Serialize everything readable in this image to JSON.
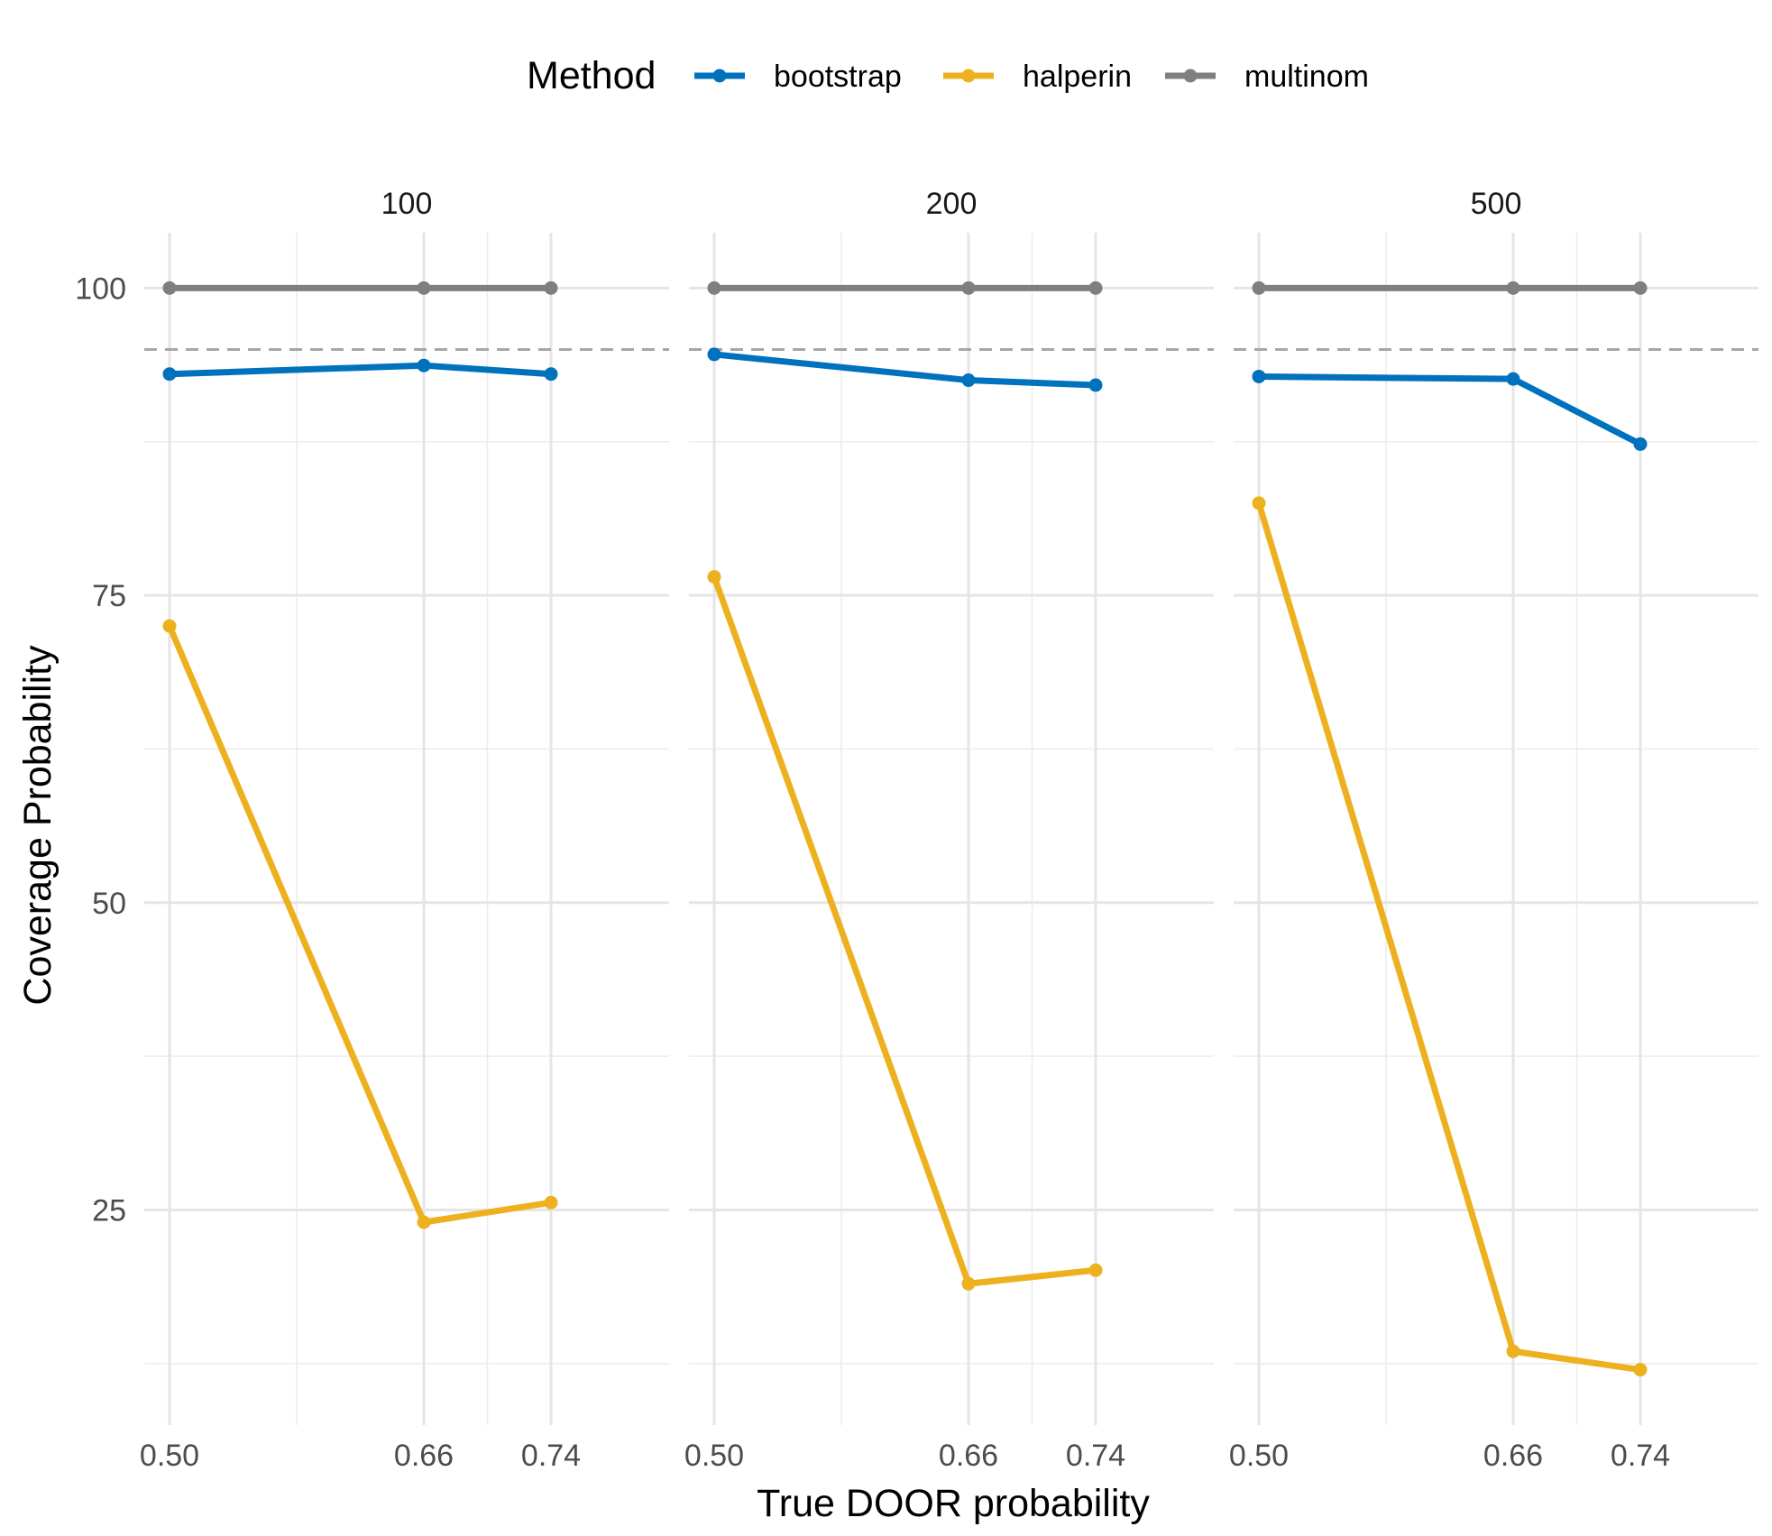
{
  "legend": {
    "title": "Method",
    "position": "top"
  },
  "chart_data": {
    "type": "line",
    "xlabel": "True DOOR probability",
    "ylabel": "Coverage Probability",
    "x": [
      0.5,
      0.66,
      0.74
    ],
    "x_tick_labels": [
      "0.50",
      "0.66",
      "0.74"
    ],
    "xlim": [
      0.5,
      0.74
    ],
    "ylim": [
      12,
      100
    ],
    "y_ticks": [
      25,
      50,
      75,
      100
    ],
    "y_tick_labels": [
      "25",
      "50",
      "75",
      "100"
    ],
    "grid": true,
    "reference_line": {
      "y": 95,
      "style": "dashed"
    },
    "series_colors": {
      "bootstrap": "#0072BD",
      "halperin": "#EDB120",
      "multinom": "#7F7F7F"
    },
    "panels": [
      {
        "label": "100",
        "series": [
          {
            "name": "bootstrap",
            "values": [
              93.0,
              93.7,
              93.0
            ]
          },
          {
            "name": "halperin",
            "values": [
              72.5,
              24.0,
              25.6
            ]
          },
          {
            "name": "multinom",
            "values": [
              100,
              100,
              100
            ]
          }
        ]
      },
      {
        "label": "200",
        "series": [
          {
            "name": "bootstrap",
            "values": [
              94.6,
              92.5,
              92.1
            ]
          },
          {
            "name": "halperin",
            "values": [
              76.5,
              19.0,
              20.1
            ]
          },
          {
            "name": "multinom",
            "values": [
              100,
              100,
              100
            ]
          }
        ]
      },
      {
        "label": "500",
        "series": [
          {
            "name": "bootstrap",
            "values": [
              92.8,
              92.6,
              87.3
            ]
          },
          {
            "name": "halperin",
            "values": [
              82.5,
              13.5,
              12.0
            ]
          },
          {
            "name": "multinom",
            "values": [
              100,
              100,
              100
            ]
          }
        ]
      }
    ]
  }
}
